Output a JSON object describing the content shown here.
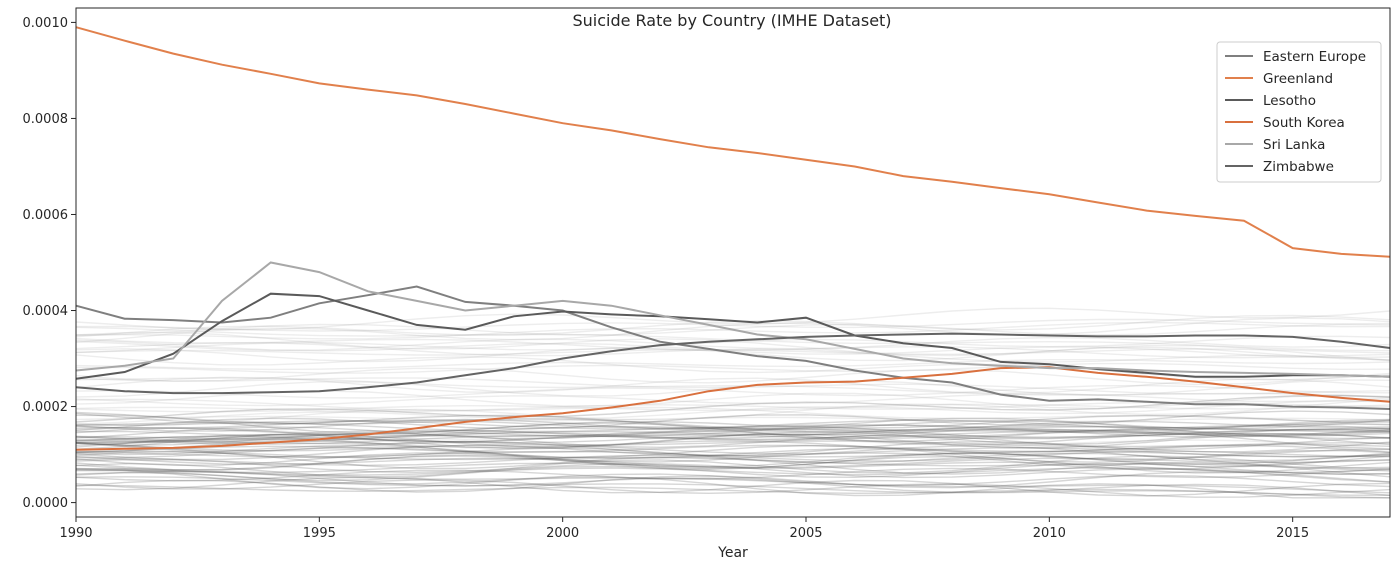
{
  "chart_data": {
    "type": "line",
    "title": "Suicide Rate by Country (IMHE Dataset)",
    "xlabel": "Year",
    "ylabel": "",
    "xlim": [
      1990,
      2017
    ],
    "ylim": [
      -3e-05,
      0.00103
    ],
    "x_ticks": [
      1990,
      1995,
      2000,
      2005,
      2010,
      2015
    ],
    "x_tick_labels": [
      "1990",
      "1995",
      "2000",
      "2005",
      "2010",
      "2015"
    ],
    "y_ticks": [
      0.0,
      0.0002,
      0.0004,
      0.0006,
      0.0008,
      0.001
    ],
    "y_tick_labels": [
      "0.0000",
      "0.0002",
      "0.0004",
      "0.0006",
      "0.0008",
      "0.0010"
    ],
    "grid": false,
    "legend_position": "top-right",
    "background_series_note": "many other countries drawn as faint gray lines, not individually labeled",
    "years": [
      1990,
      1991,
      1992,
      1993,
      1994,
      1995,
      1996,
      1997,
      1998,
      1999,
      2000,
      2001,
      2002,
      2003,
      2004,
      2005,
      2006,
      2007,
      2008,
      2009,
      2010,
      2011,
      2012,
      2013,
      2014,
      2015,
      2016,
      2017
    ],
    "series": [
      {
        "name": "Eastern Europe",
        "color": "#7f7f7f",
        "values": [
          0.00041,
          0.000383,
          0.00038,
          0.000375,
          0.000385,
          0.000415,
          0.000432,
          0.00045,
          0.000418,
          0.00041,
          0.0004,
          0.000365,
          0.000335,
          0.00032,
          0.000305,
          0.000295,
          0.000275,
          0.00026,
          0.00025,
          0.000225,
          0.000212,
          0.000215,
          0.00021,
          0.000205,
          0.000205,
          0.0002,
          0.000198,
          0.000195
        ]
      },
      {
        "name": "Greenland",
        "color": "#e1804c",
        "values": [
          0.00099,
          0.000962,
          0.000935,
          0.000912,
          0.000893,
          0.000873,
          0.00086,
          0.000848,
          0.00083,
          0.00081,
          0.00079,
          0.000775,
          0.000757,
          0.00074,
          0.000728,
          0.000714,
          0.0007,
          0.00068,
          0.000668,
          0.000655,
          0.000642,
          0.000625,
          0.000608,
          0.000597,
          0.000587,
          0.00053,
          0.000518,
          0.000512
        ]
      },
      {
        "name": "Lesotho",
        "color": "#5a5a5a",
        "values": [
          0.000258,
          0.000272,
          0.00031,
          0.000378,
          0.000435,
          0.00043,
          0.0004,
          0.00037,
          0.00036,
          0.000388,
          0.000398,
          0.000392,
          0.000388,
          0.000382,
          0.000375,
          0.000385,
          0.000348,
          0.000332,
          0.000322,
          0.000293,
          0.000288,
          0.000278,
          0.00027,
          0.000262,
          0.000262,
          0.000265,
          0.000265,
          0.000262
        ]
      },
      {
        "name": "South Korea",
        "color": "#d9703e",
        "values": [
          0.00011,
          0.000112,
          0.000114,
          0.000118,
          0.000125,
          0.000132,
          0.000142,
          0.000155,
          0.000168,
          0.000178,
          0.000186,
          0.000198,
          0.000212,
          0.000232,
          0.000245,
          0.00025,
          0.000252,
          0.00026,
          0.000268,
          0.00028,
          0.000282,
          0.00027,
          0.000262,
          0.000252,
          0.00024,
          0.000228,
          0.000218,
          0.00021
        ]
      },
      {
        "name": "Sri Lanka",
        "color": "#a8a8a8",
        "values": [
          0.000275,
          0.000285,
          0.0003,
          0.00042,
          0.0005,
          0.00048,
          0.00044,
          0.00042,
          0.0004,
          0.00041,
          0.00042,
          0.00041,
          0.00039,
          0.00037,
          0.00035,
          0.00034,
          0.00032,
          0.0003,
          0.00029,
          0.000285,
          0.00028,
          0.00028,
          0.000275,
          0.000272,
          0.00027,
          0.000268,
          0.000265,
          0.000262
        ]
      },
      {
        "name": "Zimbabwe",
        "color": "#646464",
        "values": [
          0.00024,
          0.000232,
          0.000228,
          0.000228,
          0.00023,
          0.000232,
          0.00024,
          0.00025,
          0.000265,
          0.00028,
          0.0003,
          0.000315,
          0.000328,
          0.000335,
          0.00034,
          0.000345,
          0.000348,
          0.00035,
          0.000352,
          0.00035,
          0.000348,
          0.000346,
          0.000346,
          0.000348,
          0.000348,
          0.000345,
          0.000335,
          0.000322
        ]
      }
    ]
  }
}
